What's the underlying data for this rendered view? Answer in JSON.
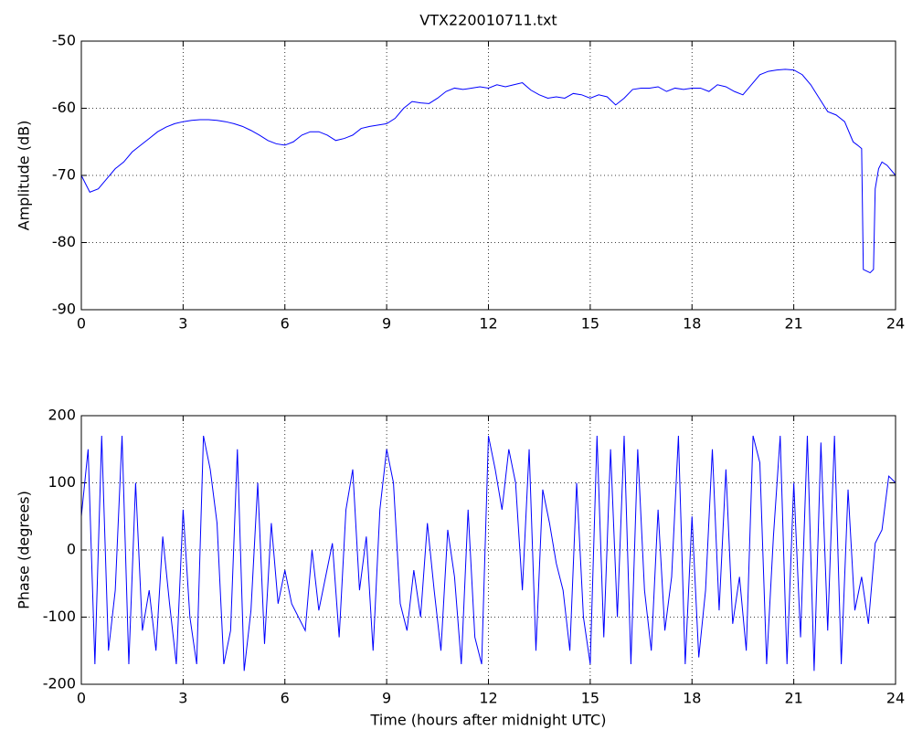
{
  "chart_data": [
    {
      "type": "line",
      "title": "VTX220010711.txt",
      "y_label": "Amplitude (dB)",
      "xlim": [
        0,
        24
      ],
      "xticks": [
        0,
        3,
        6,
        9,
        12,
        15,
        18,
        21,
        24
      ],
      "ylim": [
        -90,
        -50
      ],
      "yticks": [
        -90,
        -80,
        -70,
        -60,
        -50
      ],
      "grid": true,
      "x": [
        0,
        0.25,
        0.5,
        0.75,
        1,
        1.25,
        1.5,
        1.75,
        2,
        2.25,
        2.5,
        2.75,
        3,
        3.25,
        3.5,
        3.75,
        4,
        4.25,
        4.5,
        4.75,
        5,
        5.25,
        5.5,
        5.75,
        6,
        6.25,
        6.5,
        6.75,
        7,
        7.25,
        7.5,
        7.75,
        8,
        8.25,
        8.5,
        8.75,
        9,
        9.25,
        9.5,
        9.75,
        10,
        10.25,
        10.5,
        10.75,
        11,
        11.25,
        11.5,
        11.75,
        12,
        12.25,
        12.5,
        12.75,
        13,
        13.25,
        13.5,
        13.75,
        14,
        14.25,
        14.5,
        14.75,
        15,
        15.25,
        15.5,
        15.75,
        16,
        16.25,
        16.5,
        16.75,
        17,
        17.25,
        17.5,
        17.75,
        18,
        18.25,
        18.5,
        18.75,
        19,
        19.25,
        19.5,
        19.75,
        20,
        20.25,
        20.5,
        20.75,
        21,
        21.25,
        21.5,
        21.75,
        22,
        22.25,
        22.5,
        22.75,
        22.88,
        23,
        23.05,
        23.25,
        23.35,
        23.4,
        23.5,
        23.6,
        23.75,
        24
      ],
      "series": [
        {
          "name": "Amplitude",
          "color": "#0000ff",
          "values": [
            -70,
            -72.5,
            -72,
            -70.5,
            -69,
            -68,
            -66.5,
            -65.5,
            -64.5,
            -63.5,
            -62.8,
            -62.3,
            -62,
            -61.8,
            -61.7,
            -61.7,
            -61.8,
            -62,
            -62.3,
            -62.7,
            -63.3,
            -64,
            -64.8,
            -65.3,
            -65.5,
            -65,
            -64,
            -63.5,
            -63.5,
            -64,
            -64.8,
            -64.5,
            -64,
            -63,
            -62.7,
            -62.5,
            -62.3,
            -61.5,
            -60,
            -59,
            -59.2,
            -59.3,
            -58.5,
            -57.5,
            -57,
            -57.2,
            -57,
            -56.8,
            -57,
            -56.5,
            -56.8,
            -56.5,
            -56.2,
            -57.3,
            -58,
            -58.5,
            -58.3,
            -58.5,
            -57.8,
            -58,
            -58.5,
            -58,
            -58.3,
            -59.5,
            -58.5,
            -57.2,
            -57,
            -57,
            -56.8,
            -57.5,
            -57,
            -57.2,
            -57,
            -57,
            -57.5,
            -56.5,
            -56.8,
            -57.5,
            -58,
            -56.5,
            -55,
            -54.5,
            -54.3,
            -54.2,
            -54.3,
            -55,
            -56.5,
            -58.5,
            -60.5,
            -61,
            -62,
            -65,
            -65.5,
            -66,
            -84,
            -84.5,
            -84,
            -72,
            -69,
            -68,
            -68.5,
            -70
          ]
        }
      ]
    },
    {
      "type": "line",
      "y_label": "Phase (degrees)",
      "x_label": "Time (hours after midnight UTC)",
      "xlim": [
        0,
        24
      ],
      "xticks": [
        0,
        3,
        6,
        9,
        12,
        15,
        18,
        21,
        24
      ],
      "ylim": [
        -200,
        200
      ],
      "yticks": [
        -200,
        -100,
        0,
        100,
        200
      ],
      "grid": true,
      "x": [
        0,
        0.2,
        0.4,
        0.6,
        0.8,
        1,
        1.2,
        1.4,
        1.6,
        1.8,
        2,
        2.2,
        2.4,
        2.6,
        2.8,
        3,
        3.2,
        3.4,
        3.6,
        3.8,
        4,
        4.2,
        4.4,
        4.6,
        4.8,
        5,
        5.2,
        5.4,
        5.6,
        5.8,
        6,
        6.2,
        6.4,
        6.6,
        6.8,
        7,
        7.2,
        7.4,
        7.6,
        7.8,
        8,
        8.2,
        8.4,
        8.6,
        8.8,
        9,
        9.2,
        9.4,
        9.6,
        9.8,
        10,
        10.2,
        10.4,
        10.6,
        10.8,
        11,
        11.2,
        11.4,
        11.6,
        11.8,
        12,
        12.2,
        12.4,
        12.6,
        12.8,
        13,
        13.2,
        13.4,
        13.6,
        13.8,
        14,
        14.2,
        14.4,
        14.6,
        14.8,
        15,
        15.2,
        15.4,
        15.6,
        15.8,
        16,
        16.2,
        16.4,
        16.6,
        16.8,
        17,
        17.2,
        17.4,
        17.6,
        17.8,
        18,
        18.2,
        18.4,
        18.6,
        18.8,
        19,
        19.2,
        19.4,
        19.6,
        19.8,
        20,
        20.2,
        20.4,
        20.6,
        20.8,
        21,
        21.2,
        21.4,
        21.6,
        21.8,
        22,
        22.2,
        22.4,
        22.6,
        22.8,
        23,
        23.2,
        23.4,
        23.6,
        23.8,
        24
      ],
      "series": [
        {
          "name": "Phase",
          "color": "#0000ff",
          "values": [
            50,
            150,
            -170,
            170,
            -150,
            -60,
            170,
            -170,
            100,
            -120,
            -60,
            -150,
            20,
            -80,
            -170,
            60,
            -100,
            -170,
            170,
            120,
            40,
            -170,
            -120,
            150,
            -180,
            -90,
            100,
            -140,
            40,
            -80,
            -30,
            -80,
            -100,
            -120,
            0,
            -90,
            -40,
            10,
            -130,
            60,
            120,
            -60,
            20,
            -150,
            60,
            150,
            100,
            -80,
            -120,
            -30,
            -100,
            40,
            -60,
            -150,
            30,
            -40,
            -170,
            60,
            -130,
            -170,
            170,
            120,
            60,
            150,
            100,
            -60,
            150,
            -150,
            90,
            40,
            -20,
            -60,
            -150,
            100,
            -100,
            -170,
            170,
            -130,
            150,
            -100,
            170,
            -170,
            150,
            -60,
            -150,
            60,
            -120,
            -40,
            170,
            -170,
            50,
            -160,
            -60,
            150,
            -90,
            120,
            -110,
            -40,
            -150,
            170,
            130,
            -170,
            20,
            170,
            -170,
            100,
            -130,
            170,
            -180,
            160,
            -120,
            170,
            -170,
            90,
            -90,
            -40,
            -110,
            10,
            30,
            110,
            100
          ]
        }
      ]
    }
  ]
}
